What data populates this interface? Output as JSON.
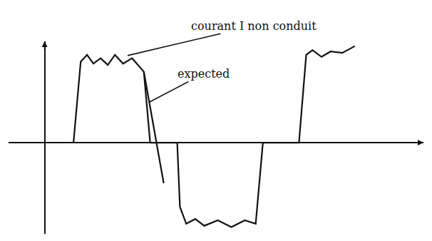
{
  "chart_data": {
    "type": "line",
    "xlim": [
      -4,
      42
    ],
    "ylim": [
      -13.5,
      15
    ],
    "tick_labels": false,
    "grid": false,
    "series": [
      {
        "color": "#111111",
        "line_style": "solid",
        "x": [
          3.2,
          4.0,
          4.7,
          5.4,
          6.2,
          7.0,
          7.8,
          8.7,
          9.7,
          11.0,
          11.7,
          14.7,
          15.0,
          15.7,
          16.7,
          17.7,
          19.2,
          20.7,
          22.2,
          23.4,
          24.2,
          28.2,
          29.0,
          29.7,
          30.7,
          31.7,
          33.0,
          34.4
        ],
        "values": [
          0,
          12,
          13,
          11.7,
          12.5,
          11.5,
          13,
          11.7,
          12.5,
          10.5,
          0,
          0,
          -9.5,
          -12,
          -11.3,
          -12.3,
          -11.5,
          -12.5,
          -11.5,
          -12,
          0,
          0,
          13,
          13.7,
          12.7,
          13.5,
          13.3,
          14.3
        ]
      },
      {
        "color": "#111111",
        "line_style": "solid",
        "x": [
          11.0,
          13.2
        ],
        "values": [
          10.5,
          -6
        ]
      }
    ],
    "annotations": [
      {
        "text": "courant I non conduit",
        "x": 23.2,
        "y": 17.3,
        "arrow_x": 9.2,
        "arrow_y": 12.9
      },
      {
        "text": "expected",
        "x": 17.6,
        "y": 10.2,
        "arrow_x": 11.6,
        "arrow_y": 6
      }
    ]
  }
}
